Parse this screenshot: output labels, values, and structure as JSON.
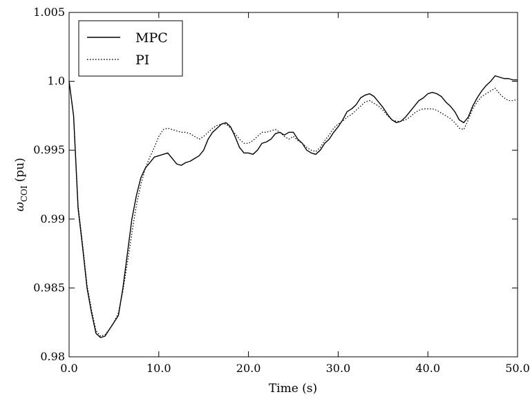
{
  "chart_data": {
    "type": "line",
    "title": "",
    "xlabel": "Time (s)",
    "ylabel_symbol": "ω",
    "ylabel_subscript": "COI",
    "ylabel_unit": "(pu)",
    "xlim": [
      0,
      50
    ],
    "ylim": [
      0.98,
      1.005
    ],
    "xticks": [
      0,
      10,
      20,
      30,
      40,
      50
    ],
    "xtick_labels": [
      "0.0",
      "10.0",
      "20.0",
      "30.0",
      "40.0",
      "50.0"
    ],
    "yticks": [
      0.98,
      0.985,
      0.99,
      0.995,
      1.0,
      1.005
    ],
    "ytick_labels": [
      "0.98",
      "0.985",
      "0.99",
      "0.995",
      "1.0",
      "1.005"
    ],
    "grid": false,
    "legend_position": "top-left",
    "series": [
      {
        "name": "MPC",
        "style": "solid",
        "color": "#000000",
        "points": [
          [
            0.0,
            1.0
          ],
          [
            0.5,
            0.9975
          ],
          [
            1.0,
            0.9908
          ],
          [
            1.5,
            0.988
          ],
          [
            2.0,
            0.985
          ],
          [
            2.5,
            0.9832
          ],
          [
            3.0,
            0.9817
          ],
          [
            3.5,
            0.9814
          ],
          [
            4.0,
            0.9815
          ],
          [
            4.5,
            0.982
          ],
          [
            5.0,
            0.9825
          ],
          [
            5.5,
            0.983
          ],
          [
            6.0,
            0.985
          ],
          [
            6.5,
            0.9875
          ],
          [
            7.0,
            0.99
          ],
          [
            7.5,
            0.9917
          ],
          [
            8.0,
            0.993
          ],
          [
            8.5,
            0.9937
          ],
          [
            9.0,
            0.9941
          ],
          [
            9.5,
            0.9945
          ],
          [
            10.0,
            0.9946
          ],
          [
            10.5,
            0.9947
          ],
          [
            11.0,
            0.9948
          ],
          [
            11.5,
            0.9944
          ],
          [
            12.0,
            0.994
          ],
          [
            12.5,
            0.9939
          ],
          [
            13.0,
            0.9941
          ],
          [
            13.5,
            0.9942
          ],
          [
            14.0,
            0.9944
          ],
          [
            14.5,
            0.9946
          ],
          [
            15.0,
            0.995
          ],
          [
            15.5,
            0.9958
          ],
          [
            16.0,
            0.9963
          ],
          [
            16.5,
            0.9966
          ],
          [
            17.0,
            0.9969
          ],
          [
            17.5,
            0.997
          ],
          [
            18.0,
            0.9967
          ],
          [
            18.5,
            0.996
          ],
          [
            19.0,
            0.9952
          ],
          [
            19.5,
            0.9948
          ],
          [
            20.0,
            0.9948
          ],
          [
            20.5,
            0.9947
          ],
          [
            21.0,
            0.995
          ],
          [
            21.5,
            0.9955
          ],
          [
            22.0,
            0.9956
          ],
          [
            22.5,
            0.9958
          ],
          [
            23.0,
            0.9962
          ],
          [
            23.5,
            0.9963
          ],
          [
            24.0,
            0.9961
          ],
          [
            24.5,
            0.9963
          ],
          [
            25.0,
            0.9963
          ],
          [
            25.5,
            0.9958
          ],
          [
            26.0,
            0.9955
          ],
          [
            26.5,
            0.995
          ],
          [
            27.0,
            0.9948
          ],
          [
            27.5,
            0.9947
          ],
          [
            28.0,
            0.995
          ],
          [
            28.5,
            0.9955
          ],
          [
            29.0,
            0.9958
          ],
          [
            29.5,
            0.9963
          ],
          [
            30.0,
            0.9967
          ],
          [
            30.5,
            0.9972
          ],
          [
            31.0,
            0.9978
          ],
          [
            31.5,
            0.998
          ],
          [
            32.0,
            0.9983
          ],
          [
            32.5,
            0.9988
          ],
          [
            33.0,
            0.999
          ],
          [
            33.5,
            0.9991
          ],
          [
            34.0,
            0.9989
          ],
          [
            34.5,
            0.9985
          ],
          [
            35.0,
            0.9981
          ],
          [
            35.5,
            0.9976
          ],
          [
            36.0,
            0.9972
          ],
          [
            36.5,
            0.997
          ],
          [
            37.0,
            0.9971
          ],
          [
            37.5,
            0.9974
          ],
          [
            38.0,
            0.9978
          ],
          [
            38.5,
            0.9982
          ],
          [
            39.0,
            0.9986
          ],
          [
            39.5,
            0.9988
          ],
          [
            40.0,
            0.9991
          ],
          [
            40.5,
            0.9992
          ],
          [
            41.0,
            0.9991
          ],
          [
            41.5,
            0.9989
          ],
          [
            42.0,
            0.9985
          ],
          [
            42.5,
            0.9982
          ],
          [
            43.0,
            0.9978
          ],
          [
            43.5,
            0.9972
          ],
          [
            44.0,
            0.997
          ],
          [
            44.5,
            0.9974
          ],
          [
            45.0,
            0.9982
          ],
          [
            45.5,
            0.9988
          ],
          [
            46.0,
            0.9993
          ],
          [
            46.5,
            0.9997
          ],
          [
            47.0,
            1.0
          ],
          [
            47.5,
            1.0004
          ],
          [
            48.0,
            1.0003
          ],
          [
            48.5,
            1.0002
          ],
          [
            49.0,
            1.0002
          ],
          [
            49.5,
            1.0001
          ],
          [
            50.0,
            1.0001
          ]
        ]
      },
      {
        "name": "PI",
        "style": "dotted",
        "color": "#000000",
        "points": [
          [
            0.0,
            1.0
          ],
          [
            0.5,
            0.9975
          ],
          [
            1.0,
            0.991
          ],
          [
            1.5,
            0.9882
          ],
          [
            2.0,
            0.9852
          ],
          [
            2.5,
            0.9834
          ],
          [
            3.0,
            0.9819
          ],
          [
            3.5,
            0.9815
          ],
          [
            4.0,
            0.9816
          ],
          [
            4.5,
            0.982
          ],
          [
            5.0,
            0.9825
          ],
          [
            5.5,
            0.9832
          ],
          [
            6.0,
            0.9848
          ],
          [
            6.5,
            0.9868
          ],
          [
            7.0,
            0.989
          ],
          [
            7.5,
            0.991
          ],
          [
            8.0,
            0.9925
          ],
          [
            8.5,
            0.9937
          ],
          [
            9.0,
            0.9945
          ],
          [
            9.5,
            0.9952
          ],
          [
            10.0,
            0.996
          ],
          [
            10.5,
            0.9965
          ],
          [
            11.0,
            0.9966
          ],
          [
            11.5,
            0.9965
          ],
          [
            12.0,
            0.9964
          ],
          [
            12.5,
            0.9963
          ],
          [
            13.0,
            0.9963
          ],
          [
            13.5,
            0.9962
          ],
          [
            14.0,
            0.996
          ],
          [
            14.5,
            0.9958
          ],
          [
            15.0,
            0.996
          ],
          [
            15.5,
            0.9963
          ],
          [
            16.0,
            0.9966
          ],
          [
            16.5,
            0.9968
          ],
          [
            17.0,
            0.9969
          ],
          [
            17.5,
            0.9969
          ],
          [
            18.0,
            0.9966
          ],
          [
            18.5,
            0.9962
          ],
          [
            19.0,
            0.9958
          ],
          [
            19.5,
            0.9955
          ],
          [
            20.0,
            0.9955
          ],
          [
            20.5,
            0.9957
          ],
          [
            21.0,
            0.996
          ],
          [
            21.5,
            0.9963
          ],
          [
            22.0,
            0.9963
          ],
          [
            22.5,
            0.9964
          ],
          [
            23.0,
            0.9965
          ],
          [
            23.5,
            0.9963
          ],
          [
            24.0,
            0.996
          ],
          [
            24.5,
            0.9958
          ],
          [
            25.0,
            0.996
          ],
          [
            25.5,
            0.9957
          ],
          [
            26.0,
            0.9955
          ],
          [
            26.5,
            0.9952
          ],
          [
            27.0,
            0.995
          ],
          [
            27.5,
            0.9949
          ],
          [
            28.0,
            0.9952
          ],
          [
            28.5,
            0.9957
          ],
          [
            29.0,
            0.9961
          ],
          [
            29.5,
            0.9966
          ],
          [
            30.0,
            0.9969
          ],
          [
            30.5,
            0.9971
          ],
          [
            31.0,
            0.9974
          ],
          [
            31.5,
            0.9976
          ],
          [
            32.0,
            0.9979
          ],
          [
            32.5,
            0.9982
          ],
          [
            33.0,
            0.9985
          ],
          [
            33.5,
            0.9986
          ],
          [
            34.0,
            0.9984
          ],
          [
            34.5,
            0.9982
          ],
          [
            35.0,
            0.9979
          ],
          [
            35.5,
            0.9975
          ],
          [
            36.0,
            0.9972
          ],
          [
            36.5,
            0.9971
          ],
          [
            37.0,
            0.9971
          ],
          [
            37.5,
            0.9972
          ],
          [
            38.0,
            0.9974
          ],
          [
            38.5,
            0.9977
          ],
          [
            39.0,
            0.9979
          ],
          [
            39.5,
            0.998
          ],
          [
            40.0,
            0.998
          ],
          [
            40.5,
            0.998
          ],
          [
            41.0,
            0.9979
          ],
          [
            41.5,
            0.9977
          ],
          [
            42.0,
            0.9975
          ],
          [
            42.5,
            0.9973
          ],
          [
            43.0,
            0.997
          ],
          [
            43.5,
            0.9966
          ],
          [
            44.0,
            0.9965
          ],
          [
            44.5,
            0.9972
          ],
          [
            45.0,
            0.998
          ],
          [
            45.5,
            0.9985
          ],
          [
            46.0,
            0.9989
          ],
          [
            46.5,
            0.9991
          ],
          [
            47.0,
            0.9993
          ],
          [
            47.5,
            0.9995
          ],
          [
            48.0,
            0.9991
          ],
          [
            48.5,
            0.9988
          ],
          [
            49.0,
            0.9986
          ],
          [
            49.5,
            0.9986
          ],
          [
            50.0,
            0.9987
          ]
        ]
      }
    ]
  }
}
